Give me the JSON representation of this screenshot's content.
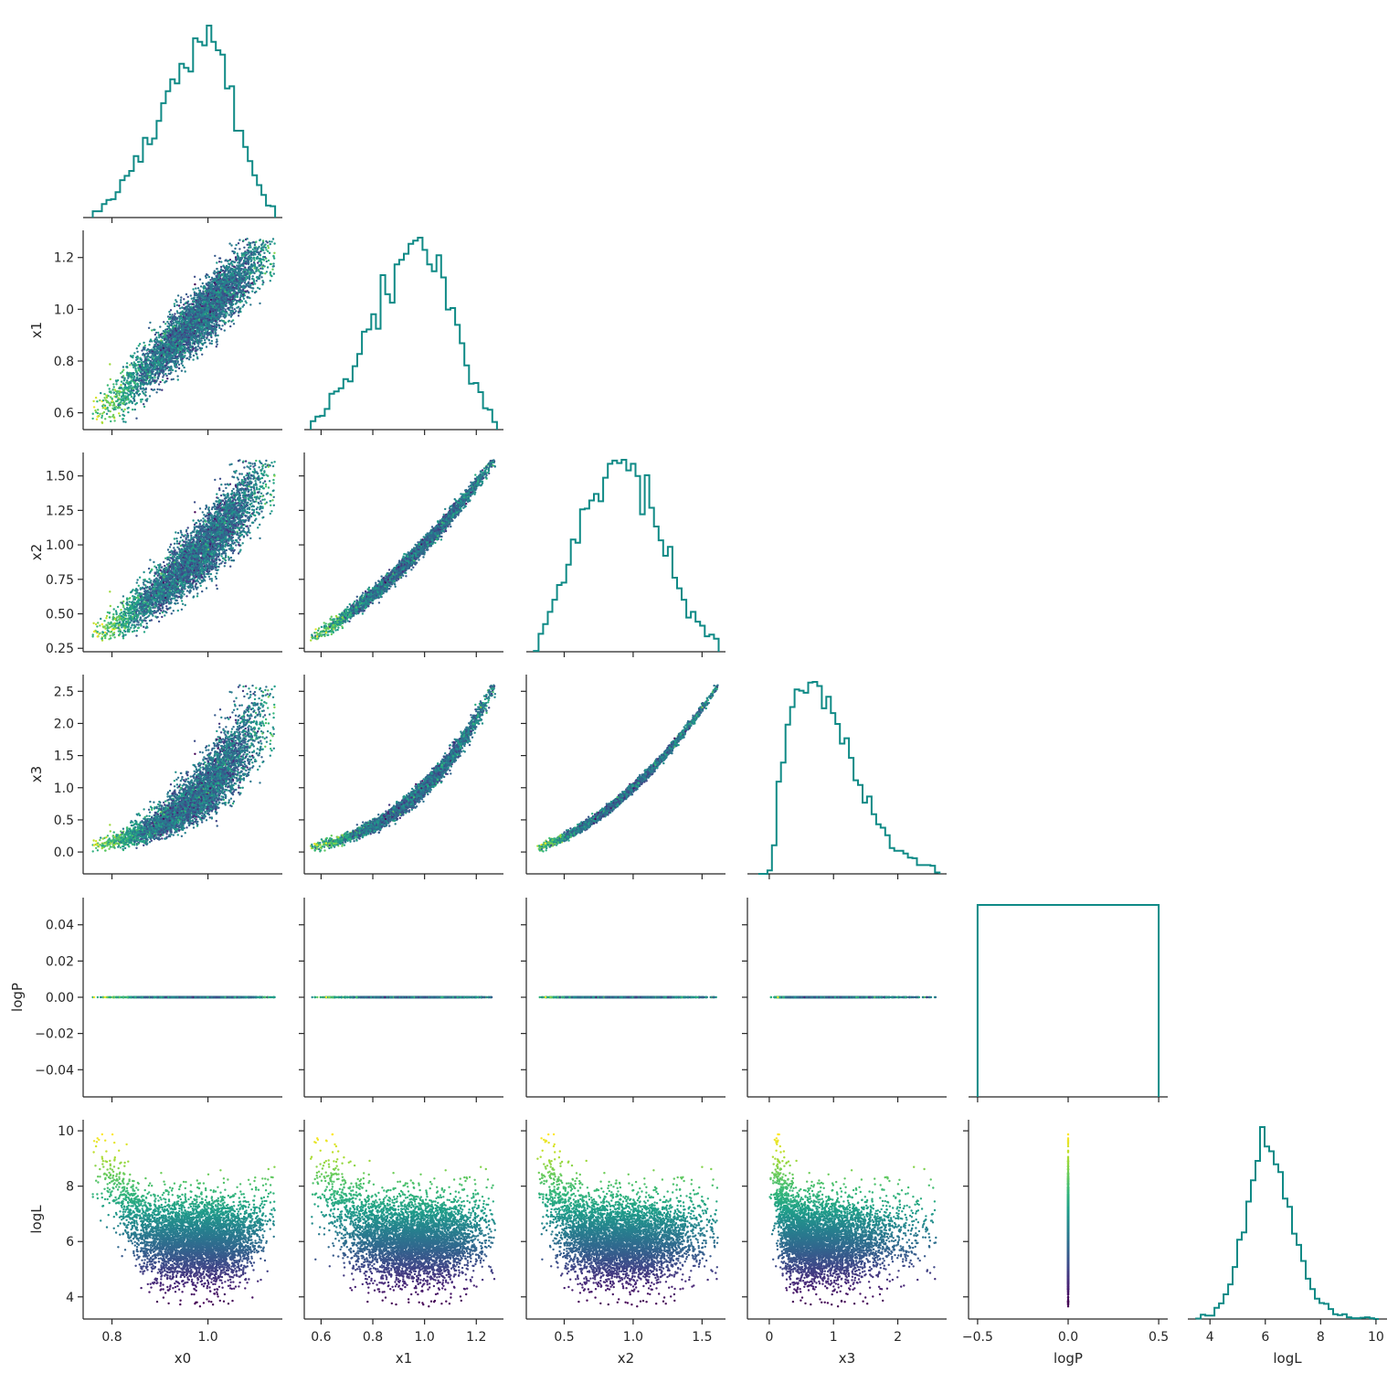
{
  "chart_data": {
    "type": "scatter",
    "title": "",
    "variables": [
      "x0",
      "x1",
      "x2",
      "x3",
      "logP",
      "logL"
    ],
    "color_by": "logL",
    "colormap": "viridis",
    "histogram_color": "#0f8a86",
    "grid": false,
    "legend": "none",
    "axes": {
      "x0": {
        "label": "x0",
        "range": [
          0.74,
          1.155
        ],
        "ticks": [
          0.8,
          1.0
        ],
        "tick_labels": [
          "0.8",
          "1.0"
        ]
      },
      "x1": {
        "label": "x1",
        "range": [
          0.535,
          1.305
        ],
        "ticks": [
          0.6,
          0.8,
          1.0,
          1.2
        ],
        "tick_labels": [
          "0.6",
          "0.8",
          "1.0",
          "1.2"
        ]
      },
      "x2": {
        "label": "x2",
        "range": [
          0.225,
          1.67
        ],
        "ticks": [
          0.25,
          0.5,
          0.75,
          1.0,
          1.25,
          1.5
        ],
        "tick_labels": [
          "0.25",
          "0.50",
          "0.75",
          "1.00",
          "1.25",
          "1.50"
        ],
        "bottom_tick_labels": [
          "0.5",
          "1.0",
          "1.5"
        ],
        "bottom_ticks": [
          0.5,
          1.0,
          1.5
        ]
      },
      "x3": {
        "label": "x3",
        "range": [
          -0.34,
          2.76
        ],
        "ticks": [
          0.0,
          0.5,
          1.0,
          1.5,
          2.0,
          2.5
        ],
        "tick_labels": [
          "0.0",
          "0.5",
          "1.0",
          "1.5",
          "2.0",
          "2.5"
        ],
        "bottom_ticks": [
          0,
          1,
          2
        ],
        "bottom_tick_labels": [
          "0",
          "1",
          "2"
        ]
      },
      "logP": {
        "label": "logP",
        "range": [
          -0.055,
          0.055
        ],
        "ticks": [
          -0.04,
          -0.02,
          0.0,
          0.02,
          0.04
        ],
        "tick_labels": [
          "−0.04",
          "−0.02",
          "0.00",
          "0.02",
          "0.04"
        ],
        "bottom_range": [
          -0.55,
          0.55
        ],
        "bottom_ticks": [
          -0.5,
          0.0,
          0.5
        ],
        "bottom_tick_labels": [
          "−0.5",
          "0.0",
          "0.5"
        ]
      },
      "logL": {
        "label": "logL",
        "range": [
          3.2,
          10.4
        ],
        "ticks": [
          4,
          6,
          8,
          10
        ],
        "tick_labels": [
          "4",
          "6",
          "8",
          "10"
        ]
      }
    },
    "histograms": {
      "x0": {
        "range": [
          0.76,
          1.14
        ],
        "bins": 40,
        "mode": 1.0,
        "shape": "left-skewed"
      },
      "x1": {
        "range": [
          0.56,
          1.28
        ],
        "bins": 40,
        "mode": 1.0,
        "shape": "left-skewed"
      },
      "x2": {
        "range": [
          0.28,
          1.62
        ],
        "bins": 40,
        "mode": 0.95,
        "shape": "near-symmetric"
      },
      "x3": {
        "range": [
          -0.17,
          2.65
        ],
        "bins": 40,
        "mode": 0.7,
        "shape": "right-skewed"
      },
      "logP": {
        "range": [
          -0.5,
          0.5
        ],
        "bins": 1,
        "value": 0.0
      },
      "logL": {
        "range": [
          3.5,
          10.1
        ],
        "bins": 40,
        "mode": 6.0,
        "shape": "near-symmetric"
      }
    },
    "relations": {
      "x1_vs_x0": "x1 ≈ x0 (increasing, band width ±0.05)",
      "x2_vs_x1": "x2 ≈ x1² (tight increasing curve)",
      "x3_vs_x2": "x3 ≈ x2² (tight increasing curve)",
      "logP": "logP = 0 for all samples",
      "logL": "logL ≈ 6 in the middle, rising to ~9–10 at both ends of each parameter"
    },
    "scatter_extents": {
      "x1_vs_x0": {
        "x": [
          0.76,
          1.14
        ],
        "y": [
          0.56,
          1.28
        ]
      },
      "x2_vs_x0": {
        "x": [
          0.76,
          1.14
        ],
        "y": [
          0.29,
          1.62
        ]
      },
      "x2_vs_x1": {
        "x": [
          0.58,
          1.27
        ],
        "y": [
          0.29,
          1.62
        ]
      },
      "x3_vs_x0": {
        "x": [
          0.77,
          1.14
        ],
        "y": [
          -0.17,
          2.65
        ]
      },
      "x3_vs_x1": {
        "x": [
          0.58,
          1.27
        ],
        "y": [
          -0.17,
          2.65
        ]
      },
      "x3_vs_x2": {
        "x": [
          0.29,
          1.62
        ],
        "y": [
          -0.17,
          2.65
        ]
      },
      "logL": {
        "y": [
          3.5,
          10.1
        ]
      }
    }
  }
}
